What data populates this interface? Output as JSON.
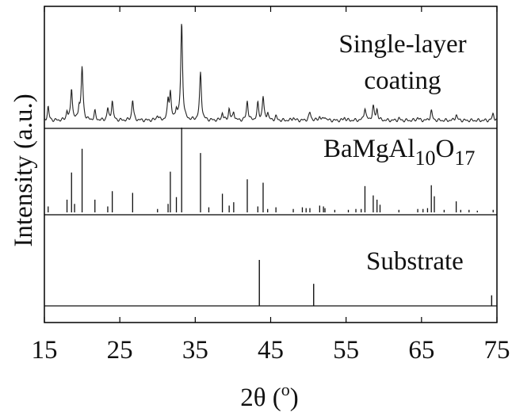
{
  "chart_data": {
    "type": "bar",
    "xlabel": "2θ (",
    "xlabel_sup": "o",
    "xlabel_close": ")",
    "ylabel": "Intensity (a.u.)",
    "xlim": [
      15,
      75
    ],
    "x_ticks": [
      15,
      25,
      35,
      45,
      55,
      65,
      75
    ],
    "grid": false,
    "panels": [
      {
        "name": "coating",
        "label_lines": [
          "Single-layer",
          "coating"
        ],
        "style": "line",
        "baseline": 0,
        "ymax": 1,
        "peaks": [
          {
            "x": 15.5,
            "y": 0.14,
            "w": 0.12
          },
          {
            "x": 18.0,
            "y": 0.09,
            "w": 0.12
          },
          {
            "x": 18.6,
            "y": 0.33,
            "w": 0.13
          },
          {
            "x": 19.6,
            "y": 0.13,
            "w": 0.12
          },
          {
            "x": 20.0,
            "y": 0.54,
            "w": 0.14
          },
          {
            "x": 21.7,
            "y": 0.09,
            "w": 0.12
          },
          {
            "x": 23.4,
            "y": 0.12,
            "w": 0.12
          },
          {
            "x": 24.0,
            "y": 0.2,
            "w": 0.13
          },
          {
            "x": 26.7,
            "y": 0.21,
            "w": 0.13
          },
          {
            "x": 30.0,
            "y": 0.05,
            "w": 0.15
          },
          {
            "x": 31.4,
            "y": 0.19,
            "w": 0.12
          },
          {
            "x": 31.7,
            "y": 0.28,
            "w": 0.13
          },
          {
            "x": 32.5,
            "y": 0.11,
            "w": 0.12
          },
          {
            "x": 33.2,
            "y": 1.0,
            "w": 0.14
          },
          {
            "x": 35.7,
            "y": 0.49,
            "w": 0.14
          },
          {
            "x": 38.6,
            "y": 0.08,
            "w": 0.12
          },
          {
            "x": 39.5,
            "y": 0.12,
            "w": 0.12
          },
          {
            "x": 40.1,
            "y": 0.09,
            "w": 0.12
          },
          {
            "x": 41.9,
            "y": 0.2,
            "w": 0.13
          },
          {
            "x": 43.3,
            "y": 0.17,
            "w": 0.13
          },
          {
            "x": 44.0,
            "y": 0.24,
            "w": 0.13
          },
          {
            "x": 44.6,
            "y": 0.08,
            "w": 0.12
          },
          {
            "x": 45.7,
            "y": 0.04,
            "w": 0.14
          },
          {
            "x": 48.0,
            "y": 0.03,
            "w": 0.14
          },
          {
            "x": 50.2,
            "y": 0.08,
            "w": 0.16
          },
          {
            "x": 51.5,
            "y": 0.04,
            "w": 0.14
          },
          {
            "x": 52.2,
            "y": 0.04,
            "w": 0.14
          },
          {
            "x": 54.8,
            "y": 0.03,
            "w": 0.14
          },
          {
            "x": 57.5,
            "y": 0.13,
            "w": 0.14
          },
          {
            "x": 58.6,
            "y": 0.14,
            "w": 0.14
          },
          {
            "x": 59.1,
            "y": 0.11,
            "w": 0.13
          },
          {
            "x": 62.0,
            "y": 0.02,
            "w": 0.14
          },
          {
            "x": 64.5,
            "y": 0.03,
            "w": 0.14
          },
          {
            "x": 66.3,
            "y": 0.1,
            "w": 0.14
          },
          {
            "x": 69.6,
            "y": 0.06,
            "w": 0.14
          },
          {
            "x": 74.5,
            "y": 0.07,
            "w": 0.14
          }
        ]
      },
      {
        "name": "reference",
        "label_text": "BaMgAl",
        "label_sub1": "10",
        "label_mid": "O",
        "label_sub2": "17",
        "style": "sticks",
        "ymax": 1,
        "sticks": [
          {
            "x": 15.5,
            "y": 0.07
          },
          {
            "x": 18.0,
            "y": 0.15
          },
          {
            "x": 18.6,
            "y": 0.47
          },
          {
            "x": 19.0,
            "y": 0.1
          },
          {
            "x": 20.0,
            "y": 0.75
          },
          {
            "x": 21.7,
            "y": 0.15
          },
          {
            "x": 23.4,
            "y": 0.07
          },
          {
            "x": 24.0,
            "y": 0.25
          },
          {
            "x": 26.7,
            "y": 0.23
          },
          {
            "x": 30.0,
            "y": 0.04
          },
          {
            "x": 31.4,
            "y": 0.1
          },
          {
            "x": 31.7,
            "y": 0.48
          },
          {
            "x": 32.5,
            "y": 0.18
          },
          {
            "x": 33.2,
            "y": 1.0
          },
          {
            "x": 35.7,
            "y": 0.7
          },
          {
            "x": 36.8,
            "y": 0.06
          },
          {
            "x": 38.6,
            "y": 0.22
          },
          {
            "x": 39.5,
            "y": 0.08
          },
          {
            "x": 40.1,
            "y": 0.12
          },
          {
            "x": 41.9,
            "y": 0.39
          },
          {
            "x": 43.3,
            "y": 0.07
          },
          {
            "x": 44.0,
            "y": 0.35
          },
          {
            "x": 44.6,
            "y": 0.04
          },
          {
            "x": 45.7,
            "y": 0.06
          },
          {
            "x": 48.0,
            "y": 0.04
          },
          {
            "x": 49.2,
            "y": 0.06
          },
          {
            "x": 49.7,
            "y": 0.05
          },
          {
            "x": 50.2,
            "y": 0.05
          },
          {
            "x": 51.5,
            "y": 0.08
          },
          {
            "x": 52.0,
            "y": 0.07
          },
          {
            "x": 52.2,
            "y": 0.05
          },
          {
            "x": 53.5,
            "y": 0.03
          },
          {
            "x": 55.3,
            "y": 0.03
          },
          {
            "x": 56.3,
            "y": 0.04
          },
          {
            "x": 57.0,
            "y": 0.04
          },
          {
            "x": 57.5,
            "y": 0.31
          },
          {
            "x": 58.6,
            "y": 0.2
          },
          {
            "x": 59.1,
            "y": 0.15
          },
          {
            "x": 59.5,
            "y": 0.09
          },
          {
            "x": 62.0,
            "y": 0.03
          },
          {
            "x": 64.5,
            "y": 0.04
          },
          {
            "x": 65.2,
            "y": 0.04
          },
          {
            "x": 65.8,
            "y": 0.05
          },
          {
            "x": 66.3,
            "y": 0.32
          },
          {
            "x": 66.7,
            "y": 0.19
          },
          {
            "x": 68.0,
            "y": 0.03
          },
          {
            "x": 69.6,
            "y": 0.13
          },
          {
            "x": 70.2,
            "y": 0.03
          },
          {
            "x": 71.3,
            "y": 0.03
          },
          {
            "x": 72.4,
            "y": 0.02
          },
          {
            "x": 74.5,
            "y": 0.03
          }
        ]
      },
      {
        "name": "substrate",
        "label_text": "Substrate",
        "style": "sticks_with_baseline",
        "ymax": 1,
        "sticks": [
          {
            "x": 43.5,
            "y": 1.0
          },
          {
            "x": 50.7,
            "y": 0.48
          },
          {
            "x": 74.3,
            "y": 0.23
          }
        ]
      }
    ]
  }
}
